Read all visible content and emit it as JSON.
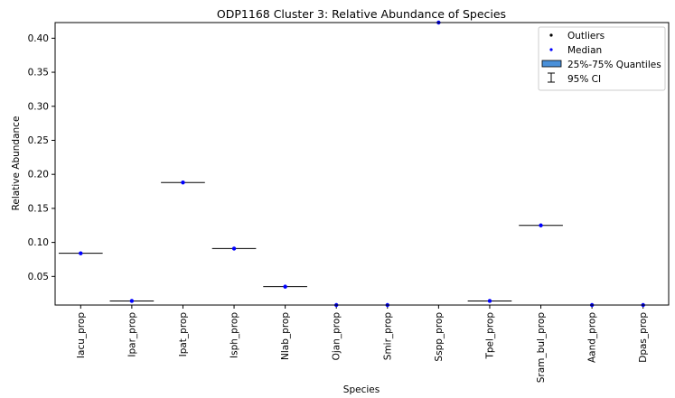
{
  "chart_data": {
    "type": "box",
    "title": "ODP1168 Cluster 3: Relative Abundance of Species",
    "xlabel": "Species",
    "ylabel": "Relative Abundance",
    "ylim": [
      0.008,
      0.423
    ],
    "yticks": [
      "0.05",
      "0.10",
      "0.15",
      "0.20",
      "0.25",
      "0.30",
      "0.35",
      "0.40"
    ],
    "grid": false,
    "legend_position": "top-right",
    "legend": [
      {
        "label": "Outliers",
        "marker": "dot",
        "color": "#000000"
      },
      {
        "label": "Median",
        "marker": "dot",
        "color": "#0000ff"
      },
      {
        "label": "25%-75% Quantiles",
        "marker": "patch",
        "color": "#4a90d9"
      },
      {
        "label": "95% CI",
        "marker": "errorbar",
        "color": "#000000"
      }
    ],
    "categories": [
      "Iacu_prop",
      "Ipar_prop",
      "Ipat_prop",
      "Isph_prop",
      "Nlab_prop",
      "Ojan_prop",
      "Smir_prop",
      "Sspp_prop",
      "Tpel_prop",
      "Sram_bul_prop",
      "Aand_prop",
      "Dpas_prop"
    ],
    "medians": [
      0.084,
      0.014,
      0.188,
      0.091,
      0.035,
      0.008,
      0.008,
      0.423,
      0.014,
      0.125,
      0.008,
      0.008
    ],
    "colors": {
      "median": "#0000ff",
      "box_line": "#000000",
      "axis": "#000000"
    }
  }
}
